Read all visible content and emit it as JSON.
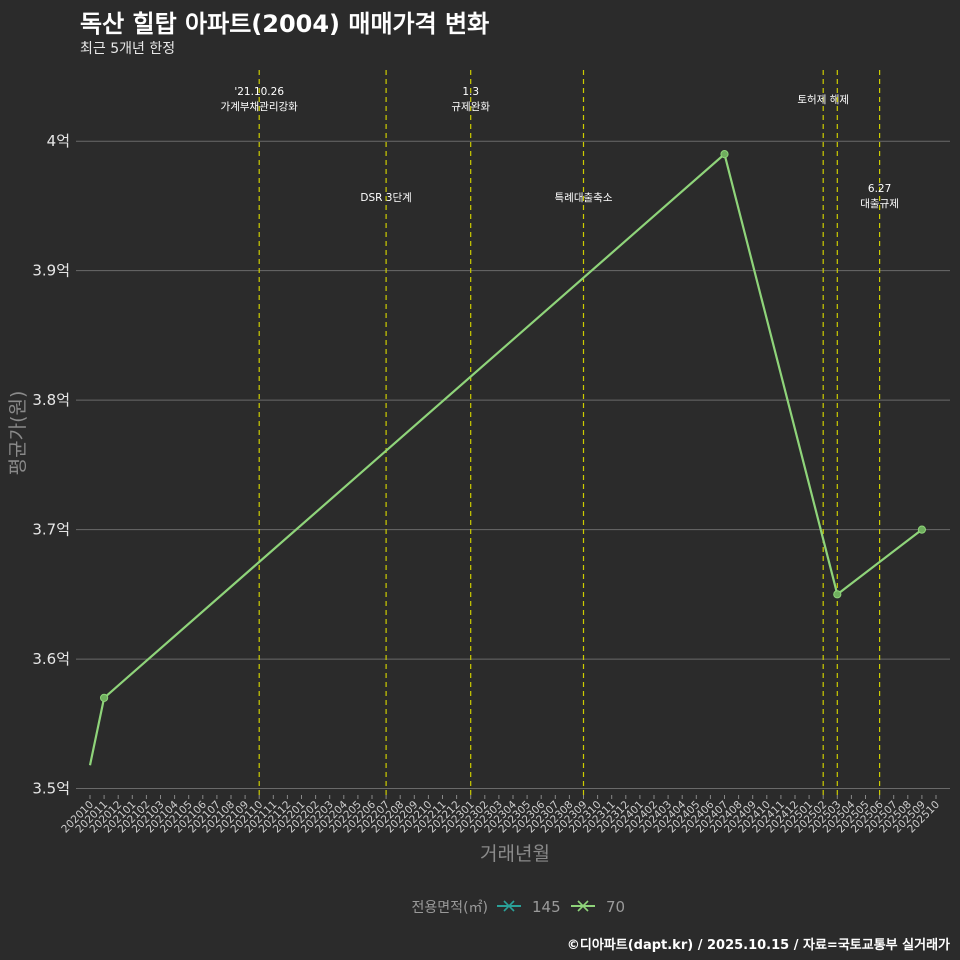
{
  "colors": {
    "background": "#2b2b2b",
    "grid": "#6a6a6a",
    "event_line": "#cccc00",
    "series_145": "#2aa198",
    "series_70": "#8fd47a"
  },
  "chart_data": {
    "type": "line",
    "title": "독산 힐탑 아파트(2004) 매매가격 변화",
    "subtitle": "최근 5개년 한정",
    "xlabel": "거래년월",
    "ylabel": "평균가(원)",
    "caption": "©디아파트(dapt.kr) / 2025.10.15 / 자료=국토교통부 실거래가",
    "ylim": [
      3.495,
      4.055
    ],
    "yticks": [
      {
        "value": 3.5,
        "label": "3.5억"
      },
      {
        "value": 3.6,
        "label": "3.6억"
      },
      {
        "value": 3.7,
        "label": "3.7억"
      },
      {
        "value": 3.8,
        "label": "3.8억"
      },
      {
        "value": 3.9,
        "label": "3.9억"
      },
      {
        "value": 4.0,
        "label": "4억"
      }
    ],
    "categories": [
      "202010",
      "202011",
      "202012",
      "202101",
      "202102",
      "202103",
      "202104",
      "202105",
      "202106",
      "202107",
      "202108",
      "202109",
      "202110",
      "202111",
      "202112",
      "202201",
      "202202",
      "202203",
      "202204",
      "202205",
      "202206",
      "202207",
      "202208",
      "202209",
      "202210",
      "202211",
      "202212",
      "202301",
      "202302",
      "202303",
      "202304",
      "202305",
      "202306",
      "202307",
      "202308",
      "202309",
      "202310",
      "202311",
      "202312",
      "202401",
      "202402",
      "202403",
      "202404",
      "202405",
      "202406",
      "202407",
      "202408",
      "202409",
      "202410",
      "202411",
      "202412",
      "202501",
      "202502",
      "202503",
      "202504",
      "202505",
      "202506",
      "202507",
      "202508",
      "202509",
      "202510"
    ],
    "legend": {
      "title": "전용면적(㎡)",
      "entries": [
        "145",
        "70"
      ]
    },
    "series": [
      {
        "name": "145",
        "points": []
      },
      {
        "name": "70",
        "points": [
          {
            "x": "202010",
            "y": 3.518,
            "marker": false
          },
          {
            "x": "202011",
            "y": 3.57,
            "marker": true
          },
          {
            "x": "202407",
            "y": 3.99,
            "marker": true
          },
          {
            "x": "202503",
            "y": 3.65,
            "marker": true
          },
          {
            "x": "202509",
            "y": 3.7,
            "marker": true
          }
        ]
      }
    ],
    "events": [
      {
        "x": "202110",
        "lines": [
          "'21.10.26",
          "가계부채관리강화"
        ],
        "position": "top"
      },
      {
        "x": "202207",
        "lines": [
          "DSR 3단계"
        ],
        "position": "mid"
      },
      {
        "x": "202301",
        "lines": [
          "1.3",
          "규제완화"
        ],
        "position": "top"
      },
      {
        "x": "202309",
        "lines": [
          "특례대출축소"
        ],
        "position": "mid"
      },
      {
        "x": "202502",
        "lines": [
          "토허제 해제"
        ],
        "position": "top-right"
      },
      {
        "x": "202503",
        "lines": [],
        "position": "none"
      },
      {
        "x": "202506",
        "lines": [
          "6.27",
          "대출규제"
        ],
        "position": "mid"
      }
    ]
  }
}
